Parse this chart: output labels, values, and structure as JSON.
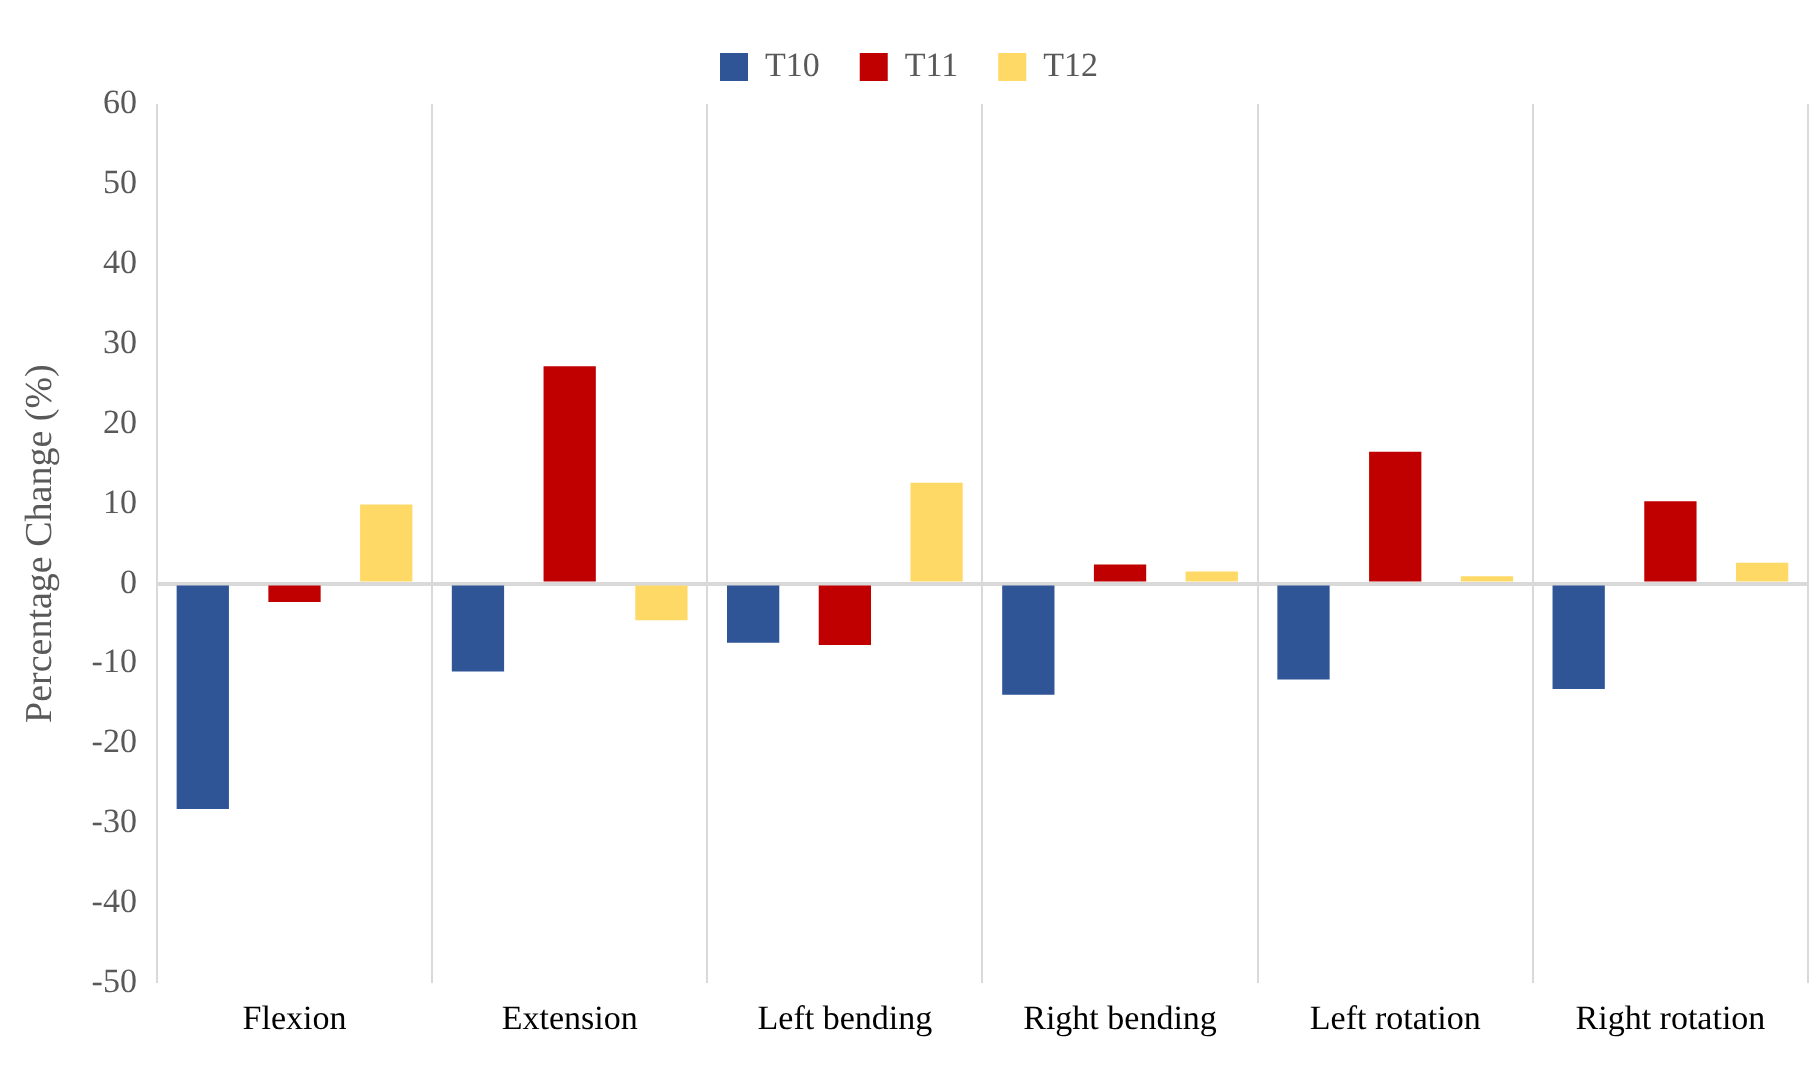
{
  "chart_data": {
    "type": "bar",
    "ylabel": "Percentage Change (%)",
    "categories": [
      "Flexion",
      "Extension",
      "Left bending",
      "Right bending",
      "Left rotation",
      "Right rotation"
    ],
    "series": [
      {
        "name": "T10",
        "color": "#2f5597",
        "values": [
          -28.2,
          -11.0,
          -7.4,
          -13.9,
          -12.0,
          -13.2
        ]
      },
      {
        "name": "T11",
        "color": "#c00000",
        "values": [
          -2.3,
          27.2,
          -7.7,
          2.4,
          16.5,
          10.3
        ]
      },
      {
        "name": "T12",
        "color": "#ffd966",
        "values": [
          9.9,
          -4.6,
          12.6,
          1.5,
          0.9,
          2.6
        ]
      }
    ],
    "ylim": [
      -50,
      60
    ],
    "yticks": [
      -50,
      -40,
      -30,
      -20,
      -10,
      0,
      10,
      20,
      30,
      40,
      50,
      60
    ],
    "grid": "x",
    "legend": "top"
  }
}
